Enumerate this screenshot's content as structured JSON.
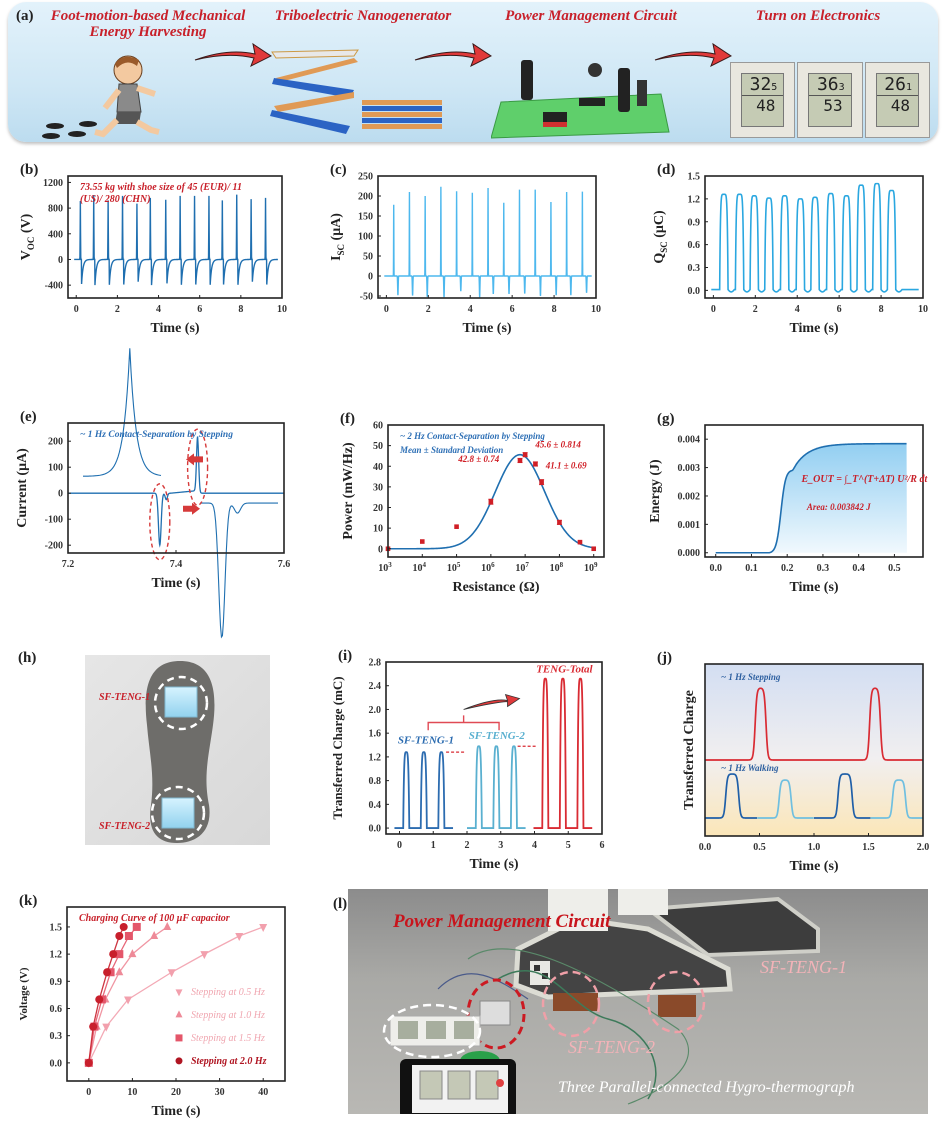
{
  "panel_a": {
    "letter": "(a)",
    "steps": [
      {
        "title_line1": "Foot-motion-based Mechanical",
        "title_line2": "Energy Harvesting"
      },
      {
        "title_line1": "Triboelectric Nanogenerator",
        "title_line2": ""
      },
      {
        "title_line1": "Power Management Circuit",
        "title_line2": ""
      },
      {
        "title_line1": "Turn on Electronics",
        "title_line2": ""
      }
    ],
    "icons": [
      "running-person-icon",
      "footprints-icon",
      "zigzag-teng-icon",
      "stacked-teng-icon",
      "circuit-board-icon",
      "hygrothermograph-icon"
    ],
    "hygrothermographs": [
      {
        "temp": "32",
        "temp_dec": "5",
        "hum": "48"
      },
      {
        "temp": "36",
        "temp_dec": "3",
        "hum": "53"
      },
      {
        "temp": "26",
        "temp_dec": "1",
        "hum": "48"
      }
    ],
    "arrow_color": "#e0393a",
    "title_color": "#c8202a"
  },
  "chart_data": [
    {
      "id": "b",
      "letter": "(b)",
      "type": "line",
      "title": "",
      "annotation_line1": "73.55 kg with shoe size of 45 (EUR)/ 11",
      "annotation_line2": "(US)/ 280 (CHN)",
      "xlabel": "Time (s)",
      "ylabel": "V",
      "ylabel_sub": "OC",
      "ylabel_unit": " (V)",
      "xlim": [
        -0.4,
        10
      ],
      "ylim": [
        -600,
        1300
      ],
      "xticks": [
        0,
        2,
        4,
        6,
        8,
        10
      ],
      "yticks": [
        -400,
        0,
        400,
        800,
        1200
      ],
      "color": "#1f6fb0",
      "peak_times": [
        0.2,
        0.85,
        1.55,
        2.25,
        2.95,
        3.6,
        4.35,
        5.05,
        5.75,
        6.45,
        7.1,
        7.8,
        8.5,
        9.2
      ],
      "peak_values": [
        910,
        1000,
        920,
        990,
        870,
        960,
        930,
        990,
        990,
        990,
        920,
        1010,
        940,
        960
      ],
      "trough_values": [
        -440,
        -460,
        -455,
        -450,
        -400,
        -460,
        -430,
        -455,
        -450,
        -455,
        -450,
        -455,
        -400,
        -450
      ]
    },
    {
      "id": "c",
      "letter": "(c)",
      "type": "line",
      "xlabel": "Time (s)",
      "ylabel": "I",
      "ylabel_sub": "SC",
      "ylabel_unit": " (μA)",
      "xlim": [
        -0.4,
        10
      ],
      "ylim": [
        -55,
        250
      ],
      "xticks": [
        0,
        2,
        4,
        6,
        8,
        10
      ],
      "yticks": [
        -50,
        0,
        50,
        100,
        150,
        200,
        250
      ],
      "color": "#4db8ee",
      "peak_times": [
        0.35,
        1.1,
        1.85,
        2.6,
        3.35,
        4.1,
        4.85,
        5.6,
        6.35,
        7.1,
        7.85,
        8.6,
        9.35
      ],
      "peak_values": [
        178,
        210,
        200,
        223,
        212,
        208,
        220,
        183,
        216,
        216,
        185,
        210,
        211
      ],
      "trough_times": [
        0.55,
        1.25,
        1.95,
        2.75,
        3.55,
        4.45,
        5.1,
        5.85,
        6.6,
        7.35,
        8.1,
        8.8,
        9.55
      ],
      "trough_values": [
        -48,
        -49,
        -52,
        -53,
        -38,
        -53,
        -45,
        -45,
        -44,
        -50,
        -48,
        -48,
        -42
      ]
    },
    {
      "id": "d",
      "letter": "(d)",
      "type": "line",
      "xlabel": "Time (s)",
      "ylabel": "Q",
      "ylabel_sub": "SC",
      "ylabel_unit": " (μC)",
      "xlim": [
        -0.4,
        10
      ],
      "ylim": [
        -0.1,
        1.5
      ],
      "xticks": [
        0,
        2,
        4,
        6,
        8,
        10
      ],
      "yticks": [
        0.0,
        0.3,
        0.6,
        0.9,
        1.2,
        1.5
      ],
      "ytick_labels": [
        "0.0",
        "0.3",
        "0.6",
        "0.9",
        "1.2",
        "1.5"
      ],
      "color": "#2aa7e0",
      "pulse_centers": [
        0.5,
        1.25,
        1.95,
        2.65,
        3.4,
        4.15,
        4.85,
        5.6,
        6.35,
        7.05,
        7.8,
        8.5
      ],
      "pulse_heights": [
        1.26,
        1.26,
        1.24,
        1.21,
        1.24,
        1.2,
        1.22,
        1.27,
        1.24,
        1.38,
        1.4,
        1.31
      ]
    },
    {
      "id": "e",
      "letter": "(e)",
      "type": "line",
      "annotation": "~ 1 Hz Contact-Separation by Stepping",
      "xlabel": "Time (s)",
      "ylabel": "Current (μA)",
      "xlim": [
        7.2,
        7.6
      ],
      "ylim": [
        -230,
        270
      ],
      "xticks": [
        7.2,
        7.4,
        7.6
      ],
      "xtick_labels": [
        "7.2",
        "7.4",
        "7.6"
      ],
      "yticks": [
        -200,
        -100,
        0,
        100,
        200
      ],
      "color": "#1f6fb0",
      "negative_peak": {
        "time": 7.37,
        "value": -200
      },
      "positive_peak": {
        "time": 7.44,
        "value": 208
      },
      "highlight_color": "#d63a3a"
    },
    {
      "id": "f",
      "letter": "(f)",
      "type": "scatter",
      "annotation_line1": "~ 2 Hz Contact-Separation by Stepping",
      "annotation_line2": "Mean ± Standard Deviation",
      "xlabel": "Resistance (Ω)",
      "ylabel": "Power (mW/Hz)",
      "xscale": "log",
      "xlim_log10": [
        3,
        9.3
      ],
      "ylim": [
        -4,
        60
      ],
      "xtick_exponents": [
        3,
        4,
        5,
        6,
        7,
        8,
        9
      ],
      "yticks": [
        0,
        10,
        20,
        30,
        40,
        50,
        60
      ],
      "points": [
        {
          "log_r": 3,
          "p": 0,
          "err": 0
        },
        {
          "log_r": 4,
          "p": 3.5,
          "err": 0
        },
        {
          "log_r": 5,
          "p": 10.7,
          "err": 0
        },
        {
          "log_r": 6,
          "p": 22.8,
          "err": 1.2
        },
        {
          "log_r": 6.85,
          "p": 42.8,
          "err": 0.74
        },
        {
          "log_r": 7,
          "p": 45.6,
          "err": 0.814
        },
        {
          "log_r": 7.3,
          "p": 41.1,
          "err": 0.69
        },
        {
          "log_r": 7.48,
          "p": 32.3,
          "err": 1.2
        },
        {
          "log_r": 8,
          "p": 12.8,
          "err": 0.6
        },
        {
          "log_r": 8.6,
          "p": 3.2,
          "err": 0
        },
        {
          "log_r": 9,
          "p": 0,
          "err": 0
        }
      ],
      "fit": {
        "peak": 45.6,
        "center_log": 6.85,
        "sigma_log": 0.72
      },
      "labels": [
        {
          "text": "42.8 ± 0.74"
        },
        {
          "text": "45.6 ± 0.814"
        },
        {
          "text": "41.1 ± 0.69"
        }
      ],
      "point_color": "#d01f26",
      "fit_color": "#1f6fb0"
    },
    {
      "id": "g",
      "letter": "(g)",
      "type": "area",
      "xlabel": "Time (s)",
      "ylabel": "Energy (J)",
      "xlim": [
        -0.03,
        0.58
      ],
      "ylim": [
        -0.00015,
        0.0045
      ],
      "xticks": [
        0.0,
        0.1,
        0.2,
        0.3,
        0.4,
        0.5
      ],
      "xtick_labels": [
        "0.0",
        "0.1",
        "0.2",
        "0.3",
        "0.4",
        "0.5"
      ],
      "yticks": [
        0.0,
        0.001,
        0.002,
        0.003,
        0.004
      ],
      "ytick_labels": [
        "0.000",
        "0.001",
        "0.002",
        "0.003",
        "0.004"
      ],
      "formula": "E_OUT = ∫_T^(T+ΔT) U²/R dt",
      "area_label": "Area: 0.003842 J",
      "final_energy": 0.003842,
      "x_end": 0.535,
      "color": "#1f6fb0"
    },
    {
      "id": "i",
      "letter": "(i)",
      "type": "line",
      "xlabel": "Time (s)",
      "ylabel": "Transferred Charge (mC)",
      "xlim": [
        -0.4,
        6
      ],
      "ylim": [
        -0.1,
        2.8
      ],
      "xticks": [
        0,
        1,
        2,
        3,
        4,
        5,
        6
      ],
      "yticks": [
        0.0,
        0.4,
        0.8,
        1.2,
        1.6,
        2.0,
        2.4,
        2.8
      ],
      "ytick_labels": [
        "0.0",
        "0.4",
        "0.8",
        "1.2",
        "1.6",
        "2.0",
        "2.4",
        "2.8"
      ],
      "series": [
        {
          "name": "SF-TENG-1",
          "color": "#2c6cb0",
          "centers": [
            0.2,
            0.72,
            1.24
          ],
          "height": 1.28
        },
        {
          "name": "SF-TENG-2",
          "color": "#5ab0d0",
          "centers": [
            2.35,
            2.87,
            3.39
          ],
          "height": 1.38
        },
        {
          "name": "TENG-Total",
          "color": "#d92b33",
          "centers": [
            4.32,
            4.84,
            5.36
          ],
          "height": 2.52
        }
      ]
    },
    {
      "id": "j",
      "letter": "(j)",
      "type": "line",
      "xlabel": "Time (s)",
      "ylabel": "Transferred Charge",
      "xlim": [
        0,
        2.0
      ],
      "xticks": [
        0.0,
        0.5,
        1.0,
        1.5,
        2.0
      ],
      "xtick_labels": [
        "0.0",
        "0.5",
        "1.0",
        "1.5",
        "2.0"
      ],
      "annotation_stepping": "~ 1 Hz Stepping",
      "annotation_walking": "~ 1 Hz Walking",
      "stepping": {
        "color": "#d92b33",
        "pulses": [
          [
            0.46,
            0.56
          ],
          [
            1.51,
            1.61
          ]
        ]
      },
      "walking_1": {
        "color": "#1f5fa8",
        "pulses": [
          [
            0.19,
            0.31
          ],
          [
            1.22,
            1.35
          ]
        ]
      },
      "walking_2": {
        "color": "#6fbfe0",
        "pulses": [
          [
            0.68,
            0.79
          ],
          [
            1.72,
            1.84
          ]
        ]
      }
    },
    {
      "id": "k",
      "letter": "(k)",
      "type": "scatter",
      "annotation": "Charging Curve of 100 μF capacitor",
      "xlabel": "Time (s)",
      "ylabel": "Voltage (V)",
      "xlim": [
        -5,
        45
      ],
      "ylim": [
        -0.2,
        1.72
      ],
      "xticks": [
        0,
        10,
        20,
        30,
        40
      ],
      "yticks": [
        0.0,
        0.3,
        0.6,
        0.9,
        1.2,
        1.5
      ],
      "ytick_labels": [
        "0.0",
        "0.3",
        "0.6",
        "0.9",
        "1.2",
        "1.5"
      ],
      "series": [
        {
          "name": "Stepping at 0.5 Hz",
          "marker": "triangle-down",
          "color": "#f2a0ad",
          "x": [
            0,
            4,
            9,
            19,
            26.5,
            34.5,
            40
          ],
          "y": [
            0,
            0.4,
            0.7,
            1.0,
            1.2,
            1.4,
            1.5
          ]
        },
        {
          "name": "Stepping at 1.0 Hz",
          "marker": "triangle-up",
          "color": "#ee8a98",
          "x": [
            0,
            1.8,
            3.8,
            7,
            10,
            15,
            18
          ],
          "y": [
            0,
            0.4,
            0.7,
            1.0,
            1.2,
            1.4,
            1.5
          ]
        },
        {
          "name": "Stepping at 1.5 Hz",
          "marker": "square",
          "color": "#e4566a",
          "x": [
            0,
            1.3,
            3,
            5,
            7,
            9.2,
            11
          ],
          "y": [
            0,
            0.4,
            0.7,
            1.0,
            1.2,
            1.4,
            1.5
          ]
        },
        {
          "name": "Stepping at 2.0 Hz",
          "marker": "circle",
          "color": "#c81f2c",
          "x": [
            0,
            1,
            2.4,
            4.2,
            5.6,
            7,
            8
          ],
          "y": [
            0,
            0.4,
            0.7,
            1.0,
            1.2,
            1.4,
            1.5
          ]
        }
      ]
    }
  ],
  "panel_h": {
    "letter": "(h)",
    "label_1": "SF-TENG-1",
    "label_2": "SF-TENG-2",
    "label_color": "#c8202a"
  },
  "panel_i_extra": {
    "bracket_color": "#e04a55"
  },
  "panel_l": {
    "letter": "(l)",
    "label_circuit": "Power Management Circuit",
    "label_teng1": "SF-TENG-1",
    "label_teng2": "SF-TENG-2",
    "label_devices": "Three Parallel-connected Hygro-thermograph"
  }
}
